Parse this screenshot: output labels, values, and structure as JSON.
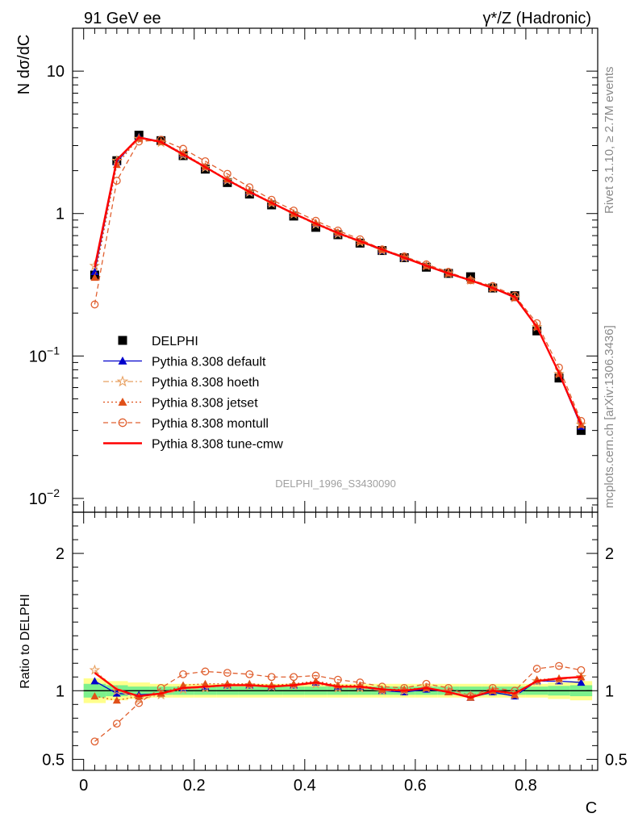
{
  "header": {
    "left": "91 GeV ee",
    "right": "γ*/Z (Hadronic)"
  },
  "side_labels": {
    "rivet": "Rivet 3.1.10, ≥ 2.7M events",
    "mcplots": "mcplots.cern.ch [arXiv:1306.3436]"
  },
  "watermark": "DELPHI_1996_S3430090",
  "chart_data": [
    {
      "panel": "main",
      "type": "line",
      "ylabel": "N dσ/dC",
      "yscale": "log",
      "ylim": [
        0.008,
        20
      ],
      "xlim": [
        -0.02,
        0.93
      ],
      "yticks": [
        {
          "value": 10,
          "label": "10"
        },
        {
          "value": 1,
          "label": "1"
        },
        {
          "value": 0.1,
          "label": "10",
          "sup": "−1"
        },
        {
          "value": 0.01,
          "label": "10",
          "sup": "−2"
        }
      ],
      "x": [
        0.02,
        0.06,
        0.1,
        0.14,
        0.18,
        0.22,
        0.26,
        0.3,
        0.34,
        0.38,
        0.42,
        0.46,
        0.5,
        0.54,
        0.58,
        0.62,
        0.66,
        0.7,
        0.74,
        0.78,
        0.82,
        0.86,
        0.9
      ],
      "series": [
        {
          "name": "DELPHI",
          "color": "#000000",
          "marker": "square",
          "line": "none",
          "values": [
            0.37,
            2.35,
            3.55,
            3.25,
            2.55,
            2.05,
            1.65,
            1.37,
            1.15,
            0.96,
            0.8,
            0.71,
            0.62,
            0.55,
            0.49,
            0.42,
            0.38,
            0.36,
            0.3,
            0.265,
            0.15,
            0.07,
            0.03
          ]
        },
        {
          "name": "Pythia 8.308 default",
          "color": "#0000cc",
          "marker": "triangle",
          "line": "solid",
          "values": [
            0.39,
            2.3,
            3.45,
            3.2,
            2.62,
            2.12,
            1.72,
            1.42,
            1.19,
            1.0,
            0.85,
            0.73,
            0.64,
            0.55,
            0.49,
            0.43,
            0.38,
            0.34,
            0.3,
            0.256,
            0.16,
            0.075,
            0.032
          ]
        },
        {
          "name": "Pythia 8.308 hoeth",
          "color": "#e8a060",
          "marker": "star",
          "line": "dashdot",
          "values": [
            0.43,
            2.35,
            3.35,
            3.15,
            2.57,
            2.1,
            1.71,
            1.41,
            1.18,
            0.99,
            0.84,
            0.72,
            0.63,
            0.55,
            0.49,
            0.43,
            0.38,
            0.34,
            0.3,
            0.256,
            0.16,
            0.075,
            0.033
          ]
        },
        {
          "name": "Pythia 8.308 jetset",
          "color": "#e05018",
          "marker": "triangle",
          "line": "dotted",
          "values": [
            0.355,
            2.2,
            3.4,
            3.2,
            2.65,
            2.14,
            1.74,
            1.44,
            1.2,
            1.0,
            0.86,
            0.74,
            0.64,
            0.56,
            0.5,
            0.43,
            0.38,
            0.34,
            0.3,
            0.256,
            0.16,
            0.075,
            0.033
          ]
        },
        {
          "name": "Pythia 8.308 montull",
          "color": "#e06030",
          "marker": "circle",
          "line": "dashed",
          "values": [
            0.23,
            1.7,
            3.2,
            3.3,
            2.85,
            2.33,
            1.9,
            1.53,
            1.25,
            1.05,
            0.89,
            0.76,
            0.66,
            0.56,
            0.5,
            0.44,
            0.39,
            0.34,
            0.31,
            0.265,
            0.17,
            0.083,
            0.035
          ]
        },
        {
          "name": "Pythia 8.308 tune-cmw",
          "color": "#ff0000",
          "marker": "none",
          "line": "solid",
          "values": [
            0.42,
            2.38,
            3.42,
            3.18,
            2.6,
            2.12,
            1.72,
            1.42,
            1.19,
            1.0,
            0.85,
            0.73,
            0.64,
            0.56,
            0.49,
            0.43,
            0.38,
            0.34,
            0.3,
            0.26,
            0.16,
            0.076,
            0.033
          ]
        }
      ]
    },
    {
      "panel": "ratio",
      "type": "line",
      "ylabel": "Ratio to DELPHI",
      "xlabel": "C",
      "ylim": [
        0.42,
        2.3
      ],
      "xlim": [
        -0.02,
        0.93
      ],
      "xticks": [
        {
          "value": 0,
          "label": "0"
        },
        {
          "value": 0.2,
          "label": "0.2"
        },
        {
          "value": 0.4,
          "label": "0.4"
        },
        {
          "value": 0.6,
          "label": "0.6"
        },
        {
          "value": 0.8,
          "label": "0.8"
        }
      ],
      "yticks": [
        {
          "value": 0.5,
          "label": "0.5"
        },
        {
          "value": 1,
          "label": "1"
        },
        {
          "value": 2,
          "label": "2"
        }
      ],
      "x": [
        0.02,
        0.06,
        0.1,
        0.14,
        0.18,
        0.22,
        0.26,
        0.3,
        0.34,
        0.38,
        0.42,
        0.46,
        0.5,
        0.54,
        0.58,
        0.62,
        0.66,
        0.7,
        0.74,
        0.78,
        0.82,
        0.86,
        0.9
      ],
      "bands": {
        "yellow_half_width": [
          0.09,
          0.07,
          0.06,
          0.05,
          0.05,
          0.05,
          0.05,
          0.05,
          0.05,
          0.05,
          0.05,
          0.05,
          0.05,
          0.05,
          0.05,
          0.05,
          0.05,
          0.05,
          0.05,
          0.05,
          0.05,
          0.06,
          0.07
        ],
        "green_half_width": [
          0.05,
          0.04,
          0.03,
          0.03,
          0.03,
          0.03,
          0.03,
          0.03,
          0.03,
          0.03,
          0.03,
          0.03,
          0.03,
          0.03,
          0.03,
          0.03,
          0.03,
          0.03,
          0.03,
          0.03,
          0.03,
          0.035,
          0.04
        ]
      },
      "series": [
        {
          "name": "Pythia 8.308 default",
          "color": "#0000cc",
          "marker": "triangle",
          "line": "solid",
          "values": [
            1.07,
            0.98,
            0.97,
            0.98,
            1.02,
            1.03,
            1.04,
            1.04,
            1.03,
            1.04,
            1.06,
            1.03,
            1.03,
            1.0,
            0.99,
            1.01,
            0.99,
            0.95,
            0.99,
            0.96,
            1.07,
            1.07,
            1.06
          ]
        },
        {
          "name": "Pythia 8.308 hoeth",
          "color": "#e8a060",
          "marker": "star",
          "line": "dashdot",
          "values": [
            1.15,
            1.0,
            0.94,
            0.97,
            1.01,
            1.02,
            1.04,
            1.04,
            1.03,
            1.04,
            1.05,
            1.02,
            1.02,
            1.0,
            1.0,
            1.02,
            1.0,
            0.96,
            1.0,
            0.97,
            1.07,
            1.08,
            1.1
          ]
        },
        {
          "name": "Pythia 8.308 jetset",
          "color": "#e05018",
          "marker": "triangle",
          "line": "dotted",
          "values": [
            0.96,
            0.93,
            0.96,
            0.98,
            1.04,
            1.05,
            1.05,
            1.05,
            1.04,
            1.05,
            1.07,
            1.04,
            1.04,
            1.01,
            1.01,
            1.02,
            0.99,
            0.95,
            1.0,
            0.97,
            1.08,
            1.09,
            1.1
          ]
        },
        {
          "name": "Pythia 8.308 montull",
          "color": "#e06030",
          "marker": "circle",
          "line": "dashed",
          "values": [
            0.63,
            0.76,
            0.91,
            1.02,
            1.12,
            1.14,
            1.13,
            1.12,
            1.1,
            1.1,
            1.11,
            1.08,
            1.06,
            1.03,
            1.02,
            1.05,
            1.02,
            0.96,
            1.02,
            1.0,
            1.16,
            1.18,
            1.15
          ]
        },
        {
          "name": "Pythia 8.308 tune-cmw",
          "color": "#ff0000",
          "marker": "none",
          "line": "solid",
          "values": [
            1.13,
            1.01,
            0.96,
            0.98,
            1.02,
            1.03,
            1.04,
            1.04,
            1.03,
            1.04,
            1.06,
            1.03,
            1.03,
            1.01,
            1.0,
            1.02,
            0.99,
            0.95,
            1.0,
            0.98,
            1.07,
            1.09,
            1.1
          ]
        }
      ]
    }
  ]
}
